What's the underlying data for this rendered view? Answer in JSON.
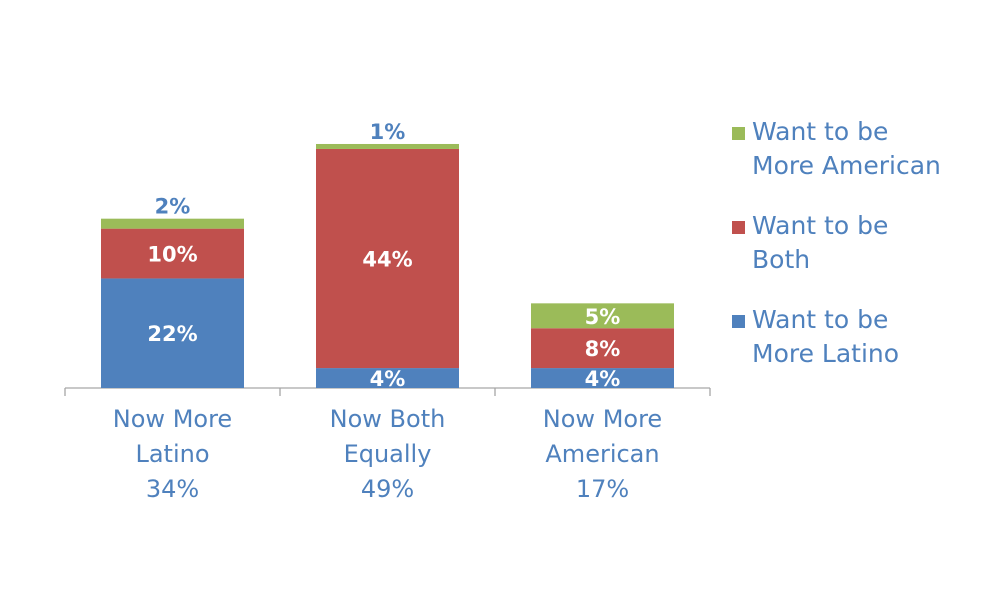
{
  "chart_data": {
    "type": "bar",
    "stacked": true,
    "title": "",
    "categories": [
      [
        "Now More",
        "Latino",
        "34%"
      ],
      [
        "Now Both",
        "Equally",
        "49%"
      ],
      [
        "Now More",
        "American",
        "17%"
      ]
    ],
    "series": [
      {
        "name": "Want to be More Latino",
        "legend_lines": [
          "Want to be",
          "More Latino"
        ],
        "color": "#4F81BD",
        "values": [
          22,
          4,
          4
        ],
        "labels": [
          "22%",
          "4%",
          "4%"
        ]
      },
      {
        "name": "Want to be Both",
        "legend_lines": [
          "Want to be",
          "Both"
        ],
        "color": "#C0504D",
        "values": [
          10,
          44,
          8
        ],
        "labels": [
          "10%",
          "44%",
          "8%"
        ]
      },
      {
        "name": "Want to be More American",
        "legend_lines": [
          "Want to be",
          "More American"
        ],
        "color": "#9BBB59",
        "values": [
          2,
          1,
          5
        ],
        "labels": [
          "2%",
          "1%",
          "5%"
        ]
      }
    ],
    "ylim": [
      0,
      50
    ],
    "grid": false,
    "legend_position": "right",
    "label_colors": {
      "inside": "#FFFFFF",
      "outside": "#4F81BD"
    },
    "text_color": "#4F81BD",
    "axis_color": "#A6A6A6"
  }
}
